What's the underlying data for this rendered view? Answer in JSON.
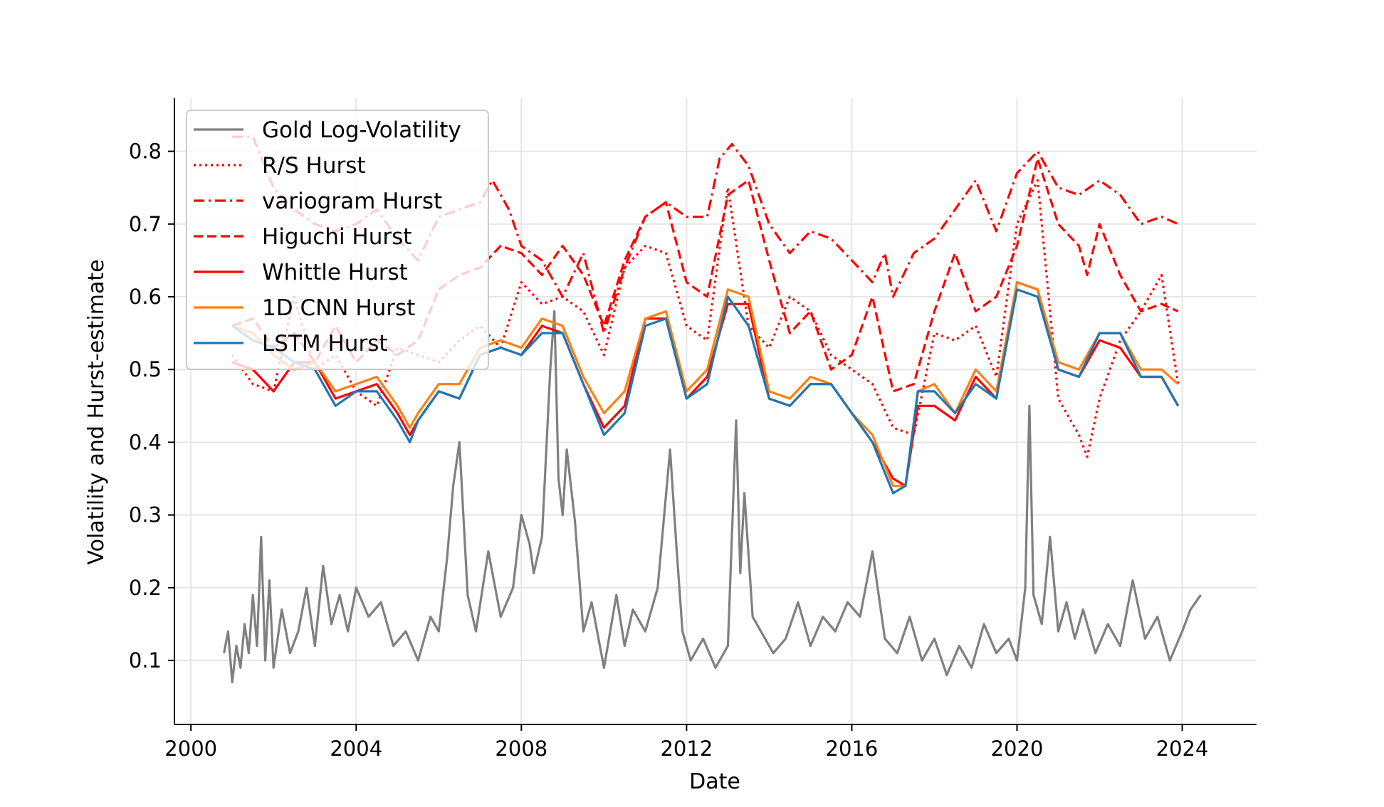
{
  "chart_data": {
    "type": "line",
    "title": "",
    "xlabel": "Date",
    "ylabel": "Volatility and Hurst-estimate",
    "x_ticks": [
      "2000",
      "2004",
      "2008",
      "2012",
      "2016",
      "2020",
      "2024"
    ],
    "y_ticks": [
      "0.1",
      "0.2",
      "0.3",
      "0.4",
      "0.5",
      "0.6",
      "0.7",
      "0.8"
    ],
    "xlim": [
      1999.6,
      2025.8
    ],
    "ylim": [
      0.012,
      0.873
    ],
    "grid": true,
    "legend_position": "top-left",
    "series": [
      {
        "name": "Gold Log-Volatility",
        "color": "#808080",
        "style": "solid",
        "x": [
          2000.8,
          2000.9,
          2001.0,
          2001.1,
          2001.2,
          2001.3,
          2001.4,
          2001.5,
          2001.6,
          2001.7,
          2001.8,
          2001.9,
          2002.0,
          2002.2,
          2002.4,
          2002.6,
          2002.8,
          2003.0,
          2003.2,
          2003.4,
          2003.6,
          2003.8,
          2004.0,
          2004.3,
          2004.6,
          2004.9,
          2005.2,
          2005.5,
          2005.8,
          2006.0,
          2006.2,
          2006.35,
          2006.5,
          2006.7,
          2006.9,
          2007.2,
          2007.5,
          2007.8,
          2008.0,
          2008.2,
          2008.3,
          2008.5,
          2008.7,
          2008.8,
          2008.9,
          2009.0,
          2009.1,
          2009.3,
          2009.5,
          2009.7,
          2010.0,
          2010.3,
          2010.5,
          2010.7,
          2011.0,
          2011.3,
          2011.6,
          2011.75,
          2011.9,
          2012.1,
          2012.4,
          2012.7,
          2013.0,
          2013.2,
          2013.3,
          2013.4,
          2013.6,
          2013.8,
          2014.1,
          2014.4,
          2014.7,
          2015.0,
          2015.3,
          2015.6,
          2015.9,
          2016.2,
          2016.5,
          2016.8,
          2017.1,
          2017.4,
          2017.7,
          2018.0,
          2018.3,
          2018.6,
          2018.9,
          2019.2,
          2019.5,
          2019.8,
          2020.0,
          2020.2,
          2020.3,
          2020.4,
          2020.6,
          2020.8,
          2021.0,
          2021.2,
          2021.4,
          2021.6,
          2021.9,
          2022.2,
          2022.5,
          2022.8,
          2023.1,
          2023.4,
          2023.7,
          2024.0,
          2024.2,
          2024.45
        ],
        "y": [
          0.11,
          0.14,
          0.07,
          0.12,
          0.09,
          0.15,
          0.11,
          0.19,
          0.12,
          0.27,
          0.1,
          0.21,
          0.09,
          0.17,
          0.11,
          0.14,
          0.2,
          0.12,
          0.23,
          0.15,
          0.19,
          0.14,
          0.2,
          0.16,
          0.18,
          0.12,
          0.14,
          0.1,
          0.16,
          0.14,
          0.24,
          0.34,
          0.4,
          0.19,
          0.14,
          0.25,
          0.16,
          0.2,
          0.3,
          0.26,
          0.22,
          0.27,
          0.5,
          0.58,
          0.35,
          0.3,
          0.39,
          0.29,
          0.14,
          0.18,
          0.09,
          0.19,
          0.12,
          0.17,
          0.14,
          0.2,
          0.39,
          0.26,
          0.14,
          0.1,
          0.13,
          0.09,
          0.12,
          0.43,
          0.22,
          0.33,
          0.16,
          0.14,
          0.11,
          0.13,
          0.18,
          0.12,
          0.16,
          0.14,
          0.18,
          0.16,
          0.25,
          0.13,
          0.11,
          0.16,
          0.1,
          0.13,
          0.08,
          0.12,
          0.09,
          0.15,
          0.11,
          0.13,
          0.1,
          0.2,
          0.45,
          0.19,
          0.15,
          0.27,
          0.14,
          0.18,
          0.13,
          0.17,
          0.11,
          0.15,
          0.12,
          0.21,
          0.13,
          0.16,
          0.1,
          0.14,
          0.17,
          0.19
        ]
      },
      {
        "name": "R/S Hurst",
        "color": "#ff0000",
        "style": "dotted",
        "x": [
          2001.0,
          2001.5,
          2002.0,
          2002.5,
          2003.0,
          2003.5,
          2004.0,
          2004.5,
          2005.0,
          2005.5,
          2006.0,
          2006.5,
          2007.0,
          2007.5,
          2008.0,
          2008.5,
          2009.0,
          2009.5,
          2010.0,
          2010.5,
          2011.0,
          2011.5,
          2012.0,
          2012.5,
          2013.0,
          2013.5,
          2014.0,
          2014.5,
          2015.0,
          2015.5,
          2016.0,
          2016.5,
          2017.0,
          2017.5,
          2018.0,
          2018.5,
          2019.0,
          2019.5,
          2020.0,
          2020.5,
          2021.0,
          2021.5,
          2021.7,
          2022.0,
          2022.5,
          2023.0,
          2023.5,
          2023.9
        ],
        "y": [
          0.52,
          0.48,
          0.47,
          0.6,
          0.5,
          0.52,
          0.47,
          0.45,
          0.53,
          0.52,
          0.51,
          0.54,
          0.56,
          0.53,
          0.62,
          0.59,
          0.6,
          0.58,
          0.52,
          0.64,
          0.67,
          0.66,
          0.56,
          0.54,
          0.75,
          0.56,
          0.53,
          0.6,
          0.58,
          0.52,
          0.5,
          0.48,
          0.42,
          0.41,
          0.55,
          0.54,
          0.56,
          0.49,
          0.7,
          0.76,
          0.46,
          0.41,
          0.38,
          0.46,
          0.54,
          0.58,
          0.63,
          0.48
        ]
      },
      {
        "name": "variogram Hurst",
        "color": "#ff0000",
        "style": "dashdot",
        "x": [
          2001.0,
          2001.5,
          2002.0,
          2002.5,
          2003.0,
          2003.5,
          2004.0,
          2004.5,
          2005.0,
          2005.5,
          2006.0,
          2006.5,
          2007.0,
          2007.3,
          2007.7,
          2008.0,
          2008.5,
          2009.0,
          2009.5,
          2010.0,
          2010.5,
          2011.0,
          2011.5,
          2012.0,
          2012.5,
          2012.8,
          2013.1,
          2013.5,
          2014.0,
          2014.5,
          2015.0,
          2015.5,
          2016.0,
          2016.5,
          2016.8,
          2017.0,
          2017.5,
          2018.0,
          2018.5,
          2019.0,
          2019.5,
          2020.0,
          2020.5,
          2021.0,
          2021.5,
          2022.0,
          2022.5,
          2023.0,
          2023.5,
          2023.9
        ],
        "y": [
          0.82,
          0.82,
          0.75,
          0.72,
          0.7,
          0.69,
          0.7,
          0.72,
          0.68,
          0.65,
          0.71,
          0.72,
          0.73,
          0.76,
          0.72,
          0.67,
          0.65,
          0.6,
          0.66,
          0.55,
          0.64,
          0.71,
          0.73,
          0.71,
          0.71,
          0.79,
          0.81,
          0.78,
          0.7,
          0.66,
          0.69,
          0.68,
          0.65,
          0.62,
          0.66,
          0.6,
          0.66,
          0.68,
          0.72,
          0.76,
          0.69,
          0.77,
          0.8,
          0.75,
          0.74,
          0.76,
          0.74,
          0.7,
          0.71,
          0.7
        ]
      },
      {
        "name": "Higuchi Hurst",
        "color": "#ff0000",
        "style": "dashed",
        "x": [
          2001.0,
          2001.5,
          2002.0,
          2002.5,
          2003.0,
          2003.5,
          2004.0,
          2004.5,
          2005.0,
          2005.5,
          2006.0,
          2006.5,
          2007.0,
          2007.5,
          2008.0,
          2008.5,
          2009.0,
          2009.5,
          2010.0,
          2010.5,
          2011.0,
          2011.5,
          2012.0,
          2012.5,
          2013.0,
          2013.5,
          2014.0,
          2014.5,
          2015.0,
          2015.5,
          2016.0,
          2016.5,
          2017.0,
          2017.5,
          2018.0,
          2018.5,
          2019.0,
          2019.5,
          2020.0,
          2020.5,
          2021.0,
          2021.5,
          2021.7,
          2022.0,
          2022.5,
          2023.0,
          2023.5,
          2023.9
        ],
        "y": [
          0.56,
          0.57,
          0.53,
          0.55,
          0.51,
          0.56,
          0.51,
          0.54,
          0.52,
          0.54,
          0.61,
          0.63,
          0.64,
          0.67,
          0.66,
          0.63,
          0.67,
          0.63,
          0.56,
          0.65,
          0.71,
          0.73,
          0.62,
          0.6,
          0.74,
          0.76,
          0.65,
          0.55,
          0.58,
          0.5,
          0.52,
          0.6,
          0.47,
          0.48,
          0.58,
          0.66,
          0.58,
          0.6,
          0.67,
          0.79,
          0.7,
          0.67,
          0.63,
          0.7,
          0.63,
          0.58,
          0.59,
          0.58
        ]
      },
      {
        "name": "Whittle Hurst",
        "color": "#ff0000",
        "style": "solid",
        "x": [
          2001.0,
          2001.5,
          2002.0,
          2002.5,
          2003.0,
          2003.5,
          2004.0,
          2004.5,
          2005.0,
          2005.3,
          2005.5,
          2006.0,
          2006.5,
          2007.0,
          2007.5,
          2008.0,
          2008.5,
          2009.0,
          2009.5,
          2010.0,
          2010.5,
          2011.0,
          2011.5,
          2012.0,
          2012.5,
          2013.0,
          2013.5,
          2014.0,
          2014.5,
          2015.0,
          2015.5,
          2016.0,
          2016.5,
          2017.0,
          2017.3,
          2017.6,
          2018.0,
          2018.5,
          2019.0,
          2019.5,
          2020.0,
          2020.5,
          2021.0,
          2021.5,
          2022.0,
          2022.5,
          2023.0,
          2023.5,
          2023.9
        ],
        "y": [
          0.51,
          0.5,
          0.47,
          0.51,
          0.51,
          0.46,
          0.47,
          0.48,
          0.44,
          0.41,
          0.43,
          0.47,
          0.46,
          0.52,
          0.53,
          0.52,
          0.56,
          0.55,
          0.48,
          0.42,
          0.45,
          0.57,
          0.57,
          0.46,
          0.49,
          0.59,
          0.59,
          0.46,
          0.45,
          0.48,
          0.48,
          0.44,
          0.4,
          0.35,
          0.34,
          0.45,
          0.45,
          0.43,
          0.49,
          0.46,
          0.62,
          0.61,
          0.5,
          0.49,
          0.54,
          0.53,
          0.49,
          0.49,
          0.45
        ]
      },
      {
        "name": "1D CNN Hurst",
        "color": "#ff7f0e",
        "style": "solid",
        "x": [
          2001.0,
          2001.5,
          2002.0,
          2002.5,
          2003.0,
          2003.5,
          2004.0,
          2004.5,
          2005.0,
          2005.3,
          2005.5,
          2006.0,
          2006.5,
          2007.0,
          2007.5,
          2008.0,
          2008.5,
          2009.0,
          2009.5,
          2010.0,
          2010.5,
          2011.0,
          2011.5,
          2012.0,
          2012.5,
          2013.0,
          2013.5,
          2014.0,
          2014.5,
          2015.0,
          2015.5,
          2016.0,
          2016.5,
          2017.0,
          2017.3,
          2017.6,
          2018.0,
          2018.5,
          2019.0,
          2019.5,
          2020.0,
          2020.5,
          2021.0,
          2021.5,
          2022.0,
          2022.5,
          2023.0,
          2023.5,
          2023.9
        ],
        "y": [
          0.56,
          0.55,
          0.52,
          0.5,
          0.51,
          0.47,
          0.48,
          0.49,
          0.45,
          0.42,
          0.44,
          0.48,
          0.48,
          0.53,
          0.54,
          0.53,
          0.57,
          0.56,
          0.49,
          0.44,
          0.47,
          0.57,
          0.58,
          0.47,
          0.5,
          0.61,
          0.6,
          0.47,
          0.46,
          0.49,
          0.48,
          0.44,
          0.41,
          0.34,
          0.34,
          0.47,
          0.48,
          0.44,
          0.5,
          0.47,
          0.62,
          0.61,
          0.51,
          0.5,
          0.55,
          0.55,
          0.5,
          0.5,
          0.48
        ]
      },
      {
        "name": "LSTM Hurst",
        "color": "#1f77b4",
        "style": "solid",
        "x": [
          2001.0,
          2001.5,
          2002.0,
          2002.5,
          2003.0,
          2003.5,
          2004.0,
          2004.5,
          2005.0,
          2005.3,
          2005.5,
          2006.0,
          2006.5,
          2007.0,
          2007.5,
          2008.0,
          2008.5,
          2009.0,
          2009.5,
          2010.0,
          2010.5,
          2011.0,
          2011.5,
          2012.0,
          2012.5,
          2013.0,
          2013.5,
          2014.0,
          2014.5,
          2015.0,
          2015.5,
          2016.0,
          2016.5,
          2017.0,
          2017.3,
          2017.6,
          2018.0,
          2018.5,
          2019.0,
          2019.5,
          2020.0,
          2020.5,
          2021.0,
          2021.5,
          2022.0,
          2022.5,
          2023.0,
          2023.5,
          2023.9
        ],
        "y": [
          0.56,
          0.54,
          0.53,
          0.51,
          0.5,
          0.45,
          0.47,
          0.47,
          0.43,
          0.4,
          0.43,
          0.47,
          0.46,
          0.52,
          0.53,
          0.52,
          0.55,
          0.55,
          0.48,
          0.41,
          0.44,
          0.56,
          0.57,
          0.46,
          0.48,
          0.6,
          0.56,
          0.46,
          0.45,
          0.48,
          0.48,
          0.44,
          0.4,
          0.33,
          0.34,
          0.47,
          0.47,
          0.44,
          0.48,
          0.46,
          0.61,
          0.6,
          0.5,
          0.49,
          0.55,
          0.55,
          0.49,
          0.49,
          0.45
        ]
      }
    ]
  }
}
